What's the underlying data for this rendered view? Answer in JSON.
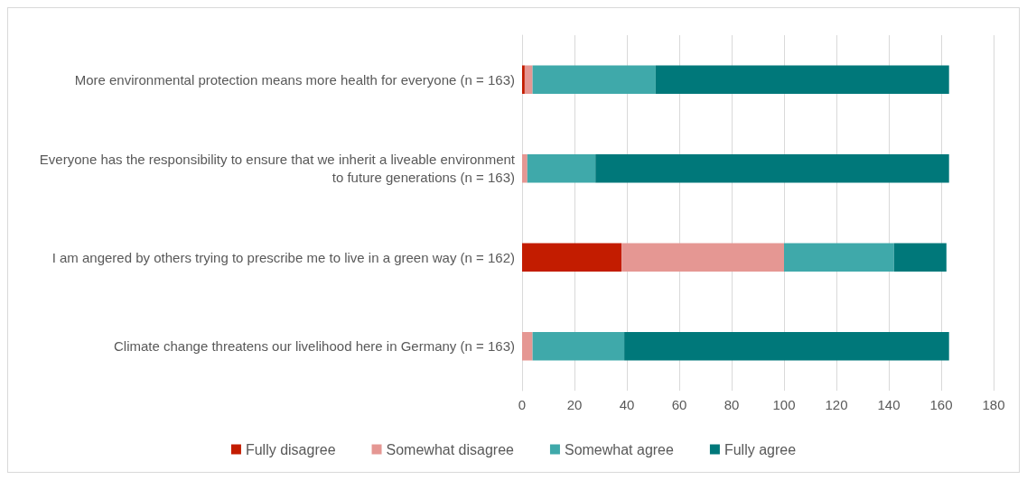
{
  "chart_data": {
    "type": "bar",
    "orientation": "horizontal",
    "stacked": true,
    "categories": [
      "More environmental protection means more health for everyone (n = 163)",
      "Everyone has the responsibility to ensure that we inherit a liveable environment to future generations (n = 163)",
      "I am angered by others trying to prescribe me to live in a green way (n = 162)",
      "Climate change threatens our livelihood here in Germany (n = 163)"
    ],
    "series": [
      {
        "name": "Fully disagree",
        "color": "#c31c00",
        "values": [
          1,
          0,
          38,
          0
        ]
      },
      {
        "name": "Somewhat disagree",
        "color": "#e59793",
        "values": [
          3,
          2,
          62,
          4
        ]
      },
      {
        "name": "Somewhat agree",
        "color": "#3fa9aa",
        "values": [
          47,
          26,
          42,
          35
        ]
      },
      {
        "name": "Fully agree",
        "color": "#00787a",
        "values": [
          112,
          135,
          20,
          124
        ]
      }
    ],
    "xlim": [
      0,
      180
    ],
    "xticks": [
      0,
      20,
      40,
      60,
      80,
      100,
      120,
      140,
      160,
      180
    ],
    "grid": "x",
    "legend": "bottom"
  }
}
